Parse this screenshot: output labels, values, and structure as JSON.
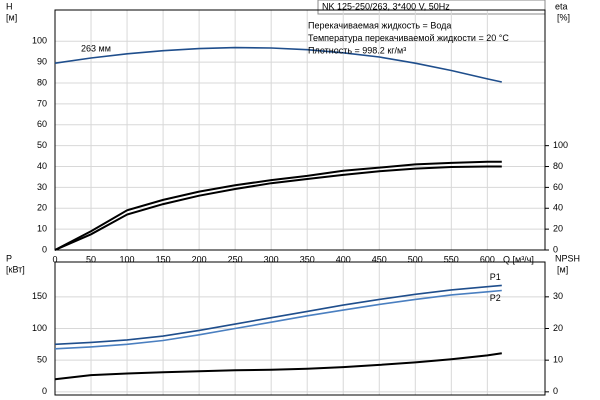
{
  "chart_data": [
    {
      "type": "line",
      "title": "NK 125-250/263, 3*400 V, 50Hz",
      "annotations": [
        "Перекачиваемая жидкость = Вода",
        "Температура перекачиваемой жидкости = 20 °C",
        "Плотность = 998.2 кг/м³"
      ],
      "xlabel": "Q [м³/ч]",
      "ylabel": "H",
      "ylabel_unit": "[м]",
      "y2label": "eta",
      "y2label_unit": "[%]",
      "x": [
        0,
        50,
        100,
        150,
        200,
        250,
        300,
        350,
        400,
        450,
        500,
        550,
        600,
        620
      ],
      "xlim": [
        0,
        680
      ],
      "xticks": [
        0,
        50,
        100,
        150,
        200,
        250,
        300,
        350,
        400,
        450,
        500,
        550,
        600
      ],
      "ylim": [
        0,
        115
      ],
      "yticks": [
        0,
        10,
        20,
        30,
        40,
        50,
        60,
        70,
        80,
        90,
        100
      ],
      "y2lim": [
        0,
        230
      ],
      "y2ticks": [
        0,
        20,
        40,
        60,
        80,
        100
      ],
      "grid": true,
      "series": [
        {
          "name": "263 мм",
          "color": "#1f4e8c",
          "values": [
            89.5,
            92,
            94,
            95.5,
            96.5,
            97,
            96.8,
            96,
            94.5,
            92.5,
            89.5,
            86,
            82,
            80.5
          ]
        },
        {
          "color": "#000000",
          "axis": "y2",
          "values": [
            0,
            18,
            38,
            48,
            56,
            62,
            67,
            71,
            76,
            79,
            82,
            83.5,
            84.5,
            84.5
          ]
        },
        {
          "color": "#000000",
          "axis": "y2",
          "values": [
            0,
            15,
            34,
            44,
            52,
            58.5,
            64,
            68,
            72,
            75.5,
            78,
            79.5,
            80,
            80
          ]
        }
      ]
    },
    {
      "type": "line",
      "ylabel": "P",
      "ylabel_unit": "[кВт]",
      "y2label": "NPSH",
      "y2label_unit": "[м]",
      "x": [
        0,
        50,
        100,
        150,
        200,
        250,
        300,
        350,
        400,
        450,
        500,
        550,
        600,
        620
      ],
      "xlim": [
        0,
        680
      ],
      "ylim": [
        -5,
        205
      ],
      "yticks": [
        0,
        50,
        100,
        150
      ],
      "y2lim": [
        -1,
        41
      ],
      "y2ticks": [
        0,
        10,
        20,
        30
      ],
      "grid": true,
      "series": [
        {
          "name": "P1",
          "color": "#1f4e8c",
          "values": [
            75,
            78,
            82,
            88,
            97,
            107,
            117,
            127,
            137,
            146,
            154,
            161,
            166,
            168
          ]
        },
        {
          "name": "P2",
          "color": "#4a7fc0",
          "values": [
            68,
            71,
            75,
            81,
            90,
            100,
            110,
            120,
            129,
            138,
            146,
            153,
            158,
            160
          ]
        },
        {
          "color": "#000000",
          "axis": "y2",
          "values": [
            4,
            5.3,
            5.8,
            6.2,
            6.5,
            6.8,
            7,
            7.3,
            7.8,
            8.5,
            9.3,
            10.3,
            11.5,
            12.2
          ]
        }
      ]
    }
  ]
}
